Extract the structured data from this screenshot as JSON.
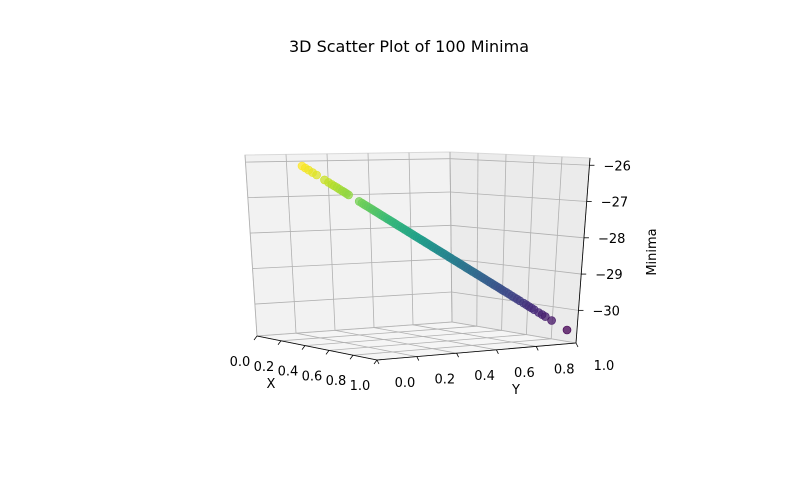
{
  "chart_data": {
    "type": "scatter",
    "projection": "3d",
    "title": "3D Scatter Plot of 100 Minima",
    "xlabel": "X",
    "ylabel": "Y",
    "zlabel": "Minima",
    "xlim": [
      0,
      1
    ],
    "ylim": [
      0,
      1
    ],
    "zlim": [
      -30.9,
      -25.8
    ],
    "x_ticks": [
      "0.0",
      "0.2",
      "0.4",
      "0.6",
      "0.8",
      "1.0"
    ],
    "y_ticks": [
      "0.0",
      "0.2",
      "0.4",
      "0.6",
      "0.8",
      "1.0"
    ],
    "z_ticks": [
      "−26",
      "−27",
      "−28",
      "−29",
      "−30"
    ],
    "z_tick_values": [
      -26,
      -27,
      -28,
      -29,
      -30
    ],
    "grid": true,
    "colormap": "viridis",
    "color_by": "z",
    "colors": {
      "low": "#440154",
      "mid": "#21918c",
      "high": "#fde725",
      "pane_side": "#ebebeb",
      "pane_back": "#f2f2f2",
      "pane_floor": "#f5f5f5"
    },
    "points_tyz": [
      [
        0.0,
        0.0,
        -26.0
      ],
      [
        0.012,
        0.012,
        -26.03
      ],
      [
        0.025,
        0.025,
        -26.07
      ],
      [
        0.04,
        0.04,
        -26.12
      ],
      [
        0.055,
        0.055,
        -26.17
      ],
      [
        0.085,
        0.085,
        -26.27
      ],
      [
        0.1,
        0.1,
        -26.32
      ],
      [
        0.112,
        0.112,
        -26.36
      ],
      [
        0.122,
        0.122,
        -26.4
      ],
      [
        0.132,
        0.132,
        -26.43
      ],
      [
        0.142,
        0.142,
        -26.46
      ],
      [
        0.152,
        0.152,
        -26.5
      ],
      [
        0.16,
        0.16,
        -26.53
      ],
      [
        0.168,
        0.168,
        -26.55
      ],
      [
        0.176,
        0.176,
        -26.58
      ],
      [
        0.216,
        0.216,
        -26.72
      ],
      [
        0.226,
        0.226,
        -26.75
      ],
      [
        0.234,
        0.234,
        -26.78
      ],
      [
        0.242,
        0.242,
        -26.81
      ],
      [
        0.25,
        0.25,
        -26.83
      ],
      [
        0.258,
        0.258,
        -26.86
      ],
      [
        0.266,
        0.266,
        -26.89
      ],
      [
        0.274,
        0.274,
        -26.92
      ],
      [
        0.282,
        0.282,
        -26.95
      ],
      [
        0.29,
        0.29,
        -26.97
      ],
      [
        0.298,
        0.298,
        -27.0
      ],
      [
        0.306,
        0.306,
        -27.03
      ],
      [
        0.314,
        0.314,
        -27.06
      ],
      [
        0.322,
        0.322,
        -27.08
      ],
      [
        0.33,
        0.33,
        -27.11
      ],
      [
        0.338,
        0.338,
        -27.14
      ],
      [
        0.346,
        0.346,
        -27.17
      ],
      [
        0.354,
        0.354,
        -27.2
      ],
      [
        0.362,
        0.362,
        -27.22
      ],
      [
        0.37,
        0.37,
        -27.25
      ],
      [
        0.378,
        0.378,
        -27.28
      ],
      [
        0.386,
        0.386,
        -27.31
      ],
      [
        0.394,
        0.394,
        -27.33
      ],
      [
        0.402,
        0.402,
        -27.36
      ],
      [
        0.41,
        0.41,
        -27.39
      ],
      [
        0.418,
        0.418,
        -27.42
      ],
      [
        0.426,
        0.426,
        -27.45
      ],
      [
        0.434,
        0.434,
        -27.47
      ],
      [
        0.442,
        0.442,
        -27.5
      ],
      [
        0.45,
        0.45,
        -27.53
      ],
      [
        0.458,
        0.458,
        -27.56
      ],
      [
        0.466,
        0.466,
        -27.58
      ],
      [
        0.474,
        0.474,
        -27.61
      ],
      [
        0.482,
        0.482,
        -27.64
      ],
      [
        0.49,
        0.49,
        -27.67
      ],
      [
        0.498,
        0.498,
        -27.7
      ],
      [
        0.506,
        0.506,
        -27.72
      ],
      [
        0.514,
        0.514,
        -27.75
      ],
      [
        0.522,
        0.522,
        -27.78
      ],
      [
        0.53,
        0.53,
        -27.81
      ],
      [
        0.538,
        0.538,
        -27.84
      ],
      [
        0.546,
        0.546,
        -27.86
      ],
      [
        0.554,
        0.554,
        -27.89
      ],
      [
        0.562,
        0.562,
        -27.92
      ],
      [
        0.57,
        0.57,
        -27.95
      ],
      [
        0.578,
        0.578,
        -27.97
      ],
      [
        0.586,
        0.586,
        -28.0
      ],
      [
        0.594,
        0.594,
        -28.03
      ],
      [
        0.602,
        0.602,
        -28.06
      ],
      [
        0.61,
        0.61,
        -28.09
      ],
      [
        0.618,
        0.618,
        -28.11
      ],
      [
        0.626,
        0.626,
        -28.14
      ],
      [
        0.634,
        0.634,
        -28.17
      ],
      [
        0.642,
        0.642,
        -28.2
      ],
      [
        0.65,
        0.65,
        -28.22
      ],
      [
        0.658,
        0.658,
        -28.25
      ],
      [
        0.666,
        0.666,
        -28.28
      ],
      [
        0.674,
        0.674,
        -28.31
      ],
      [
        0.682,
        0.682,
        -28.34
      ],
      [
        0.69,
        0.69,
        -28.36
      ],
      [
        0.698,
        0.698,
        -28.39
      ],
      [
        0.706,
        0.706,
        -28.42
      ],
      [
        0.714,
        0.714,
        -28.45
      ],
      [
        0.722,
        0.722,
        -28.47
      ],
      [
        0.73,
        0.73,
        -28.5
      ],
      [
        0.738,
        0.738,
        -28.53
      ],
      [
        0.746,
        0.746,
        -28.56
      ],
      [
        0.754,
        0.754,
        -28.59
      ],
      [
        0.762,
        0.762,
        -28.61
      ],
      [
        0.772,
        0.772,
        -28.65
      ],
      [
        0.782,
        0.782,
        -28.68
      ],
      [
        0.792,
        0.792,
        -28.72
      ],
      [
        0.802,
        0.802,
        -28.75
      ],
      [
        0.812,
        0.812,
        -28.79
      ],
      [
        0.822,
        0.822,
        -28.82
      ],
      [
        0.836,
        0.836,
        -28.87
      ],
      [
        0.846,
        0.846,
        -28.91
      ],
      [
        0.856,
        0.856,
        -28.94
      ],
      [
        0.866,
        0.866,
        -28.97
      ],
      [
        0.876,
        0.876,
        -29.01
      ],
      [
        0.893,
        0.893,
        -29.06
      ],
      [
        0.906,
        0.906,
        -29.11
      ],
      [
        0.918,
        0.918,
        -29.15
      ],
      [
        0.942,
        0.942,
        -29.23
      ],
      [
        1.0,
        1.0,
        -29.43
      ]
    ]
  }
}
